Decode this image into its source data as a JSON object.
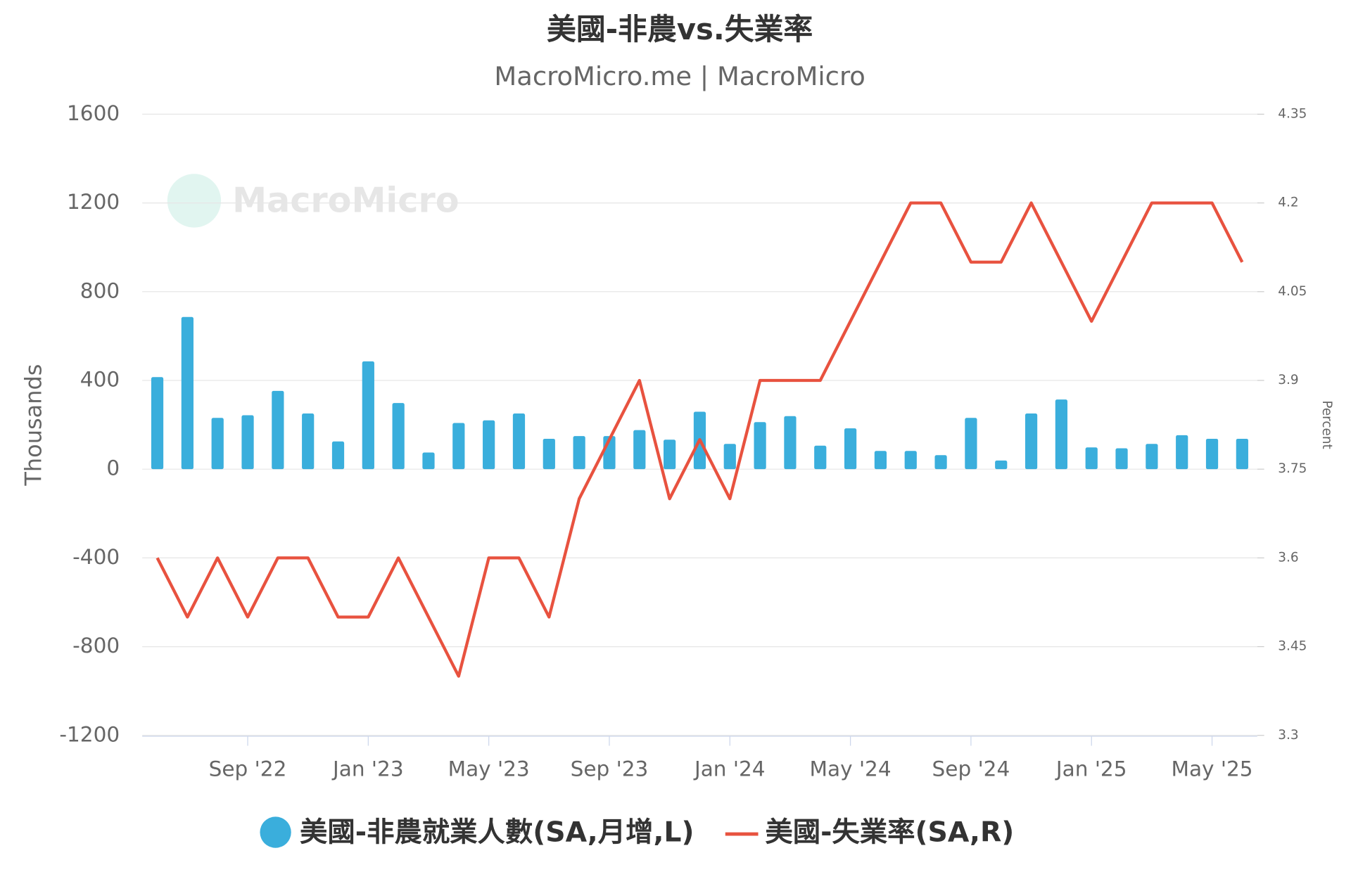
{
  "chart_data": {
    "type": "bar-line",
    "title": "美國-非農vs.失業率",
    "subtitle": "MacroMicro.me | MacroMicro",
    "watermark": "MacroMicro",
    "y_label": "Thousands",
    "y2_label": "Percent",
    "categories": [
      null,
      null,
      null,
      "Sep '22",
      null,
      null,
      null,
      "Jan '23",
      null,
      null,
      null,
      "May '23",
      null,
      null,
      null,
      "Sep '23",
      null,
      null,
      null,
      "Jan '24",
      null,
      null,
      null,
      "May '24",
      null,
      null,
      null,
      "Sep '24",
      null,
      null,
      null,
      "Jan '25",
      null,
      null,
      null,
      "May '25",
      null
    ],
    "ylim": [
      -1200,
      1600
    ],
    "yticks": [
      -1200,
      -800,
      -400,
      0,
      400,
      800,
      1200,
      1600
    ],
    "y2lim": [
      3.3,
      4.35
    ],
    "y2ticks": [
      3.3,
      3.45,
      3.6,
      3.75,
      3.9,
      4.05,
      4.2,
      4.35
    ],
    "grid": true,
    "legend": "bottom",
    "series": [
      {
        "name": "美國-非農就業人數(SA,月增,L)",
        "type": "bar",
        "color": "#3aaedc",
        "values": [
          415,
          686,
          231,
          243,
          353,
          251,
          125,
          486,
          298,
          75,
          208,
          220,
          251,
          137,
          149,
          149,
          176,
          133,
          259,
          114,
          212,
          239,
          106,
          184,
          82,
          82,
          63,
          231,
          39,
          251,
          314,
          98,
          94,
          114,
          153,
          137,
          137
        ]
      },
      {
        "name": "美國-失業率(SA,R)",
        "type": "line",
        "axis": "y2",
        "color": "#e8523f",
        "values": [
          3.6,
          3.5,
          3.6,
          3.5,
          3.6,
          3.6,
          3.5,
          3.5,
          3.6,
          3.5,
          3.4,
          3.6,
          3.6,
          3.5,
          3.7,
          3.8,
          3.9,
          3.7,
          3.8,
          3.7,
          3.9,
          3.9,
          3.9,
          4.0,
          4.1,
          4.2,
          4.2,
          4.1,
          4.1,
          4.2,
          4.1,
          4.0,
          4.1,
          4.2,
          4.2,
          4.2,
          4.1
        ]
      }
    ]
  }
}
